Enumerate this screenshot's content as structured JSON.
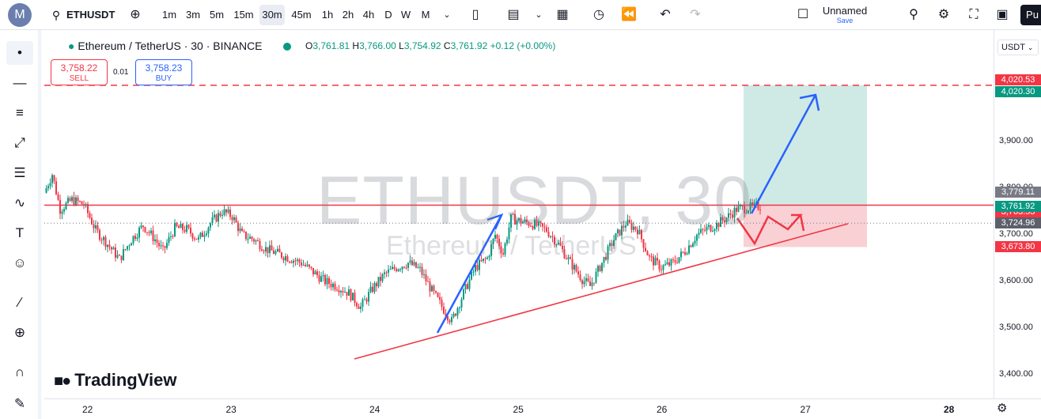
{
  "toolbar": {
    "avatar_letter": "M",
    "symbol": "ETHUSDT",
    "intervals": [
      "1m",
      "3m",
      "5m",
      "15m",
      "30m",
      "45m",
      "1h",
      "2h",
      "4h",
      "D",
      "W",
      "M"
    ],
    "active_interval": "30m",
    "layout_name": "Unnamed",
    "save_label": "Save",
    "publish_label": "Pu"
  },
  "legend": {
    "title": "Ethereum / TetherUS · 30 · BINANCE",
    "o_label": "O",
    "o": "3,761.81",
    "h_label": "H",
    "h": "3,766.00",
    "l_label": "L",
    "l": "3,754.92",
    "c_label": "C",
    "c": "3,761.92",
    "change": "+0.12 (+0.00%)",
    "sell_price": "3,758.22",
    "sell_label": "SELL",
    "spread": "0.01",
    "buy_price": "3,758.23",
    "buy_label": "BUY"
  },
  "currency": "USDT",
  "watermark": {
    "line1": "ETHUSDT, 30",
    "line2": "Ethereum / TetherUS"
  },
  "brand": "TradingView",
  "colors": {
    "up": "#089981",
    "down": "#f23645",
    "blue": "#2962ff",
    "target_fill": "#cfeae5",
    "stop_fill": "#f9d0d4"
  },
  "chart_data": {
    "type": "candlestick",
    "x_ticks": [
      "22",
      "23",
      "24",
      "25",
      "26",
      "27",
      "28"
    ],
    "y_ticks": [
      "4,000.00",
      "3,900.00",
      "3,800.00",
      "3,700.00",
      "3,600.00",
      "3,500.00",
      "3,400.00"
    ],
    "ylim": [
      3380,
      4090
    ],
    "last_price": 3761.92,
    "price_labels": [
      "4,020.53",
      "4,020.30",
      "3,779.11",
      "3,763.53",
      "3,761.92",
      "3,724.96",
      "3,673.80"
    ],
    "close_path": [
      [
        0,
        3790
      ],
      [
        4,
        3830
      ],
      [
        8,
        3755
      ],
      [
        14,
        3775
      ],
      [
        20,
        3765
      ],
      [
        26,
        3710
      ],
      [
        32,
        3680
      ],
      [
        38,
        3648
      ],
      [
        44,
        3690
      ],
      [
        50,
        3720
      ],
      [
        56,
        3690
      ],
      [
        60,
        3665
      ],
      [
        66,
        3715
      ],
      [
        72,
        3712
      ],
      [
        78,
        3690
      ],
      [
        84,
        3725
      ],
      [
        90,
        3750
      ],
      [
        95,
        3740
      ],
      [
        100,
        3700
      ],
      [
        106,
        3690
      ],
      [
        112,
        3670
      ],
      [
        118,
        3660
      ],
      [
        124,
        3650
      ],
      [
        130,
        3640
      ],
      [
        136,
        3620
      ],
      [
        142,
        3600
      ],
      [
        148,
        3590
      ],
      [
        154,
        3575
      ],
      [
        160,
        3545
      ],
      [
        166,
        3585
      ],
      [
        172,
        3615
      ],
      [
        178,
        3630
      ],
      [
        184,
        3640
      ],
      [
        190,
        3625
      ],
      [
        196,
        3580
      ],
      [
        202,
        3540
      ],
      [
        206,
        3515
      ],
      [
        212,
        3575
      ],
      [
        218,
        3630
      ],
      [
        224,
        3650
      ],
      [
        228,
        3700
      ],
      [
        232,
        3660
      ],
      [
        236,
        3735
      ],
      [
        242,
        3728
      ],
      [
        248,
        3722
      ],
      [
        254,
        3710
      ],
      [
        260,
        3680
      ],
      [
        266,
        3640
      ],
      [
        272,
        3605
      ],
      [
        276,
        3590
      ],
      [
        282,
        3640
      ],
      [
        288,
        3690
      ],
      [
        294,
        3725
      ],
      [
        300,
        3712
      ],
      [
        306,
        3650
      ],
      [
        312,
        3630
      ],
      [
        318,
        3640
      ],
      [
        324,
        3665
      ],
      [
        330,
        3700
      ],
      [
        336,
        3715
      ],
      [
        340,
        3722
      ],
      [
        346,
        3740
      ],
      [
        350,
        3755
      ],
      [
        356,
        3758
      ],
      [
        362,
        3761.92
      ]
    ],
    "trendline": [
      [
        215,
        3500
      ],
      [
        395,
        3760
      ]
    ],
    "horizontal_lines": [
      3763.53,
      4020.53
    ],
    "position": {
      "entry": 3763.53,
      "target": 4020.53,
      "stop": 3673.8
    }
  }
}
